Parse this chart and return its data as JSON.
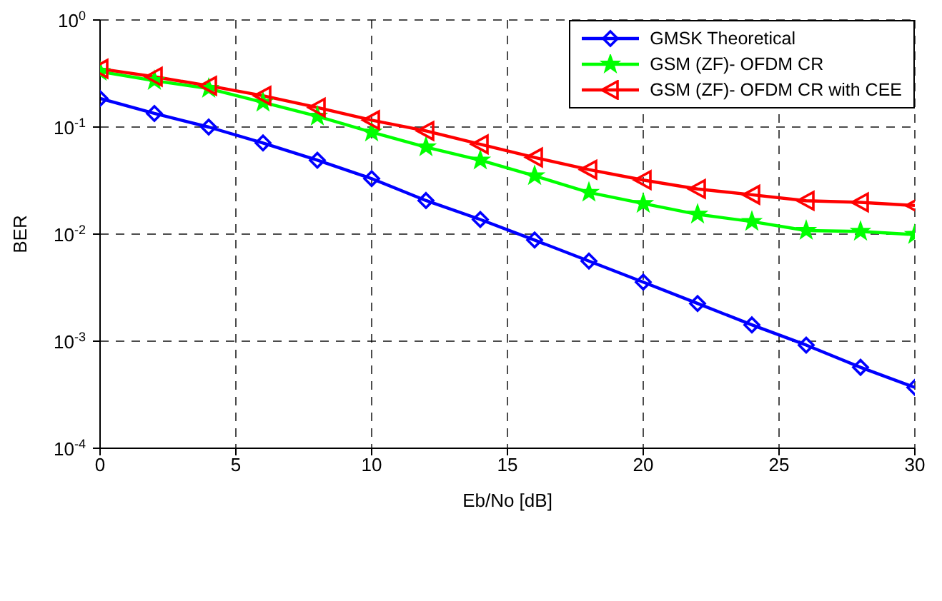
{
  "chart_data": {
    "type": "line",
    "xlabel": "Eb/No [dB]",
    "ylabel": "BER",
    "log": "y",
    "grid": true,
    "legend": "top right",
    "line_style": "solid",
    "x": [
      0,
      2,
      4,
      6,
      8,
      10,
      12,
      14,
      16,
      18,
      20,
      22,
      24,
      26,
      28,
      30
    ],
    "xlim": [
      0,
      30
    ],
    "xticks": [
      0,
      5,
      10,
      15,
      20,
      25,
      30
    ],
    "ylim": [
      0.0001,
      1
    ],
    "yticks": [
      {
        "value": 0.0001,
        "label": "10$^{-4}$"
      },
      {
        "value": 0.001,
        "label": "10$^{-3}$"
      },
      {
        "value": 0.01,
        "label": "10$^{-2}$"
      },
      {
        "value": 0.1,
        "label": "10$^{-1}$"
      },
      {
        "value": 1,
        "label": "10$^{0}$"
      }
    ],
    "series": [
      {
        "name": "GMSK Theoretical",
        "color": "#0000ff",
        "marker": "diamond",
        "values": [
          0.185,
          0.134,
          0.1,
          0.071,
          0.049,
          0.033,
          0.0206,
          0.0137,
          0.0088,
          0.0056,
          0.00356,
          0.00225,
          0.00142,
          0.00092,
          0.00057,
          0.00037
        ]
      },
      {
        "name": "GSM (ZF)- OFDM CR",
        "color": "#00ff00",
        "marker": "star",
        "values": [
          0.33,
          0.271,
          0.229,
          0.17,
          0.126,
          0.0895,
          0.065,
          0.049,
          0.035,
          0.0245,
          0.0193,
          0.0153,
          0.0131,
          0.0108,
          0.0106,
          0.0099
        ]
      },
      {
        "name": "GSM (ZF)- OFDM CR with CEE",
        "color": "#ff0000",
        "marker": "triangle",
        "values": [
          0.35,
          0.295,
          0.243,
          0.196,
          0.152,
          0.116,
          0.092,
          0.069,
          0.052,
          0.04,
          0.032,
          0.0264,
          0.0233,
          0.0205,
          0.0198,
          0.0185
        ]
      }
    ]
  }
}
